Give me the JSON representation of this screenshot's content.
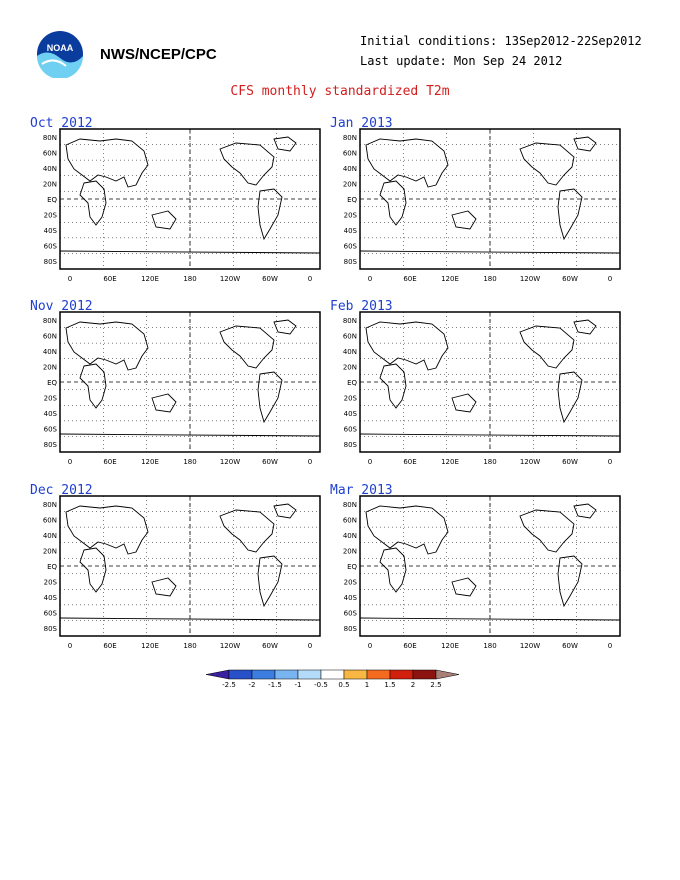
{
  "header": {
    "org": "NWS/NCEP/CPC",
    "initial": "Initial conditions: 13Sep2012-22Sep2012",
    "updated": "Last update: Mon Sep 24 2012",
    "title": "CFS monthly standardized T2m",
    "logo_text": "NOAA"
  },
  "panels": [
    {
      "title": "Oct 2012"
    },
    {
      "title": "Jan 2013"
    },
    {
      "title": "Nov 2012"
    },
    {
      "title": "Feb 2013"
    },
    {
      "title": "Dec 2012"
    },
    {
      "title": "Mar 2013"
    }
  ],
  "axes": {
    "lat_labels": [
      "80N",
      "60N",
      "40N",
      "20N",
      "EQ",
      "20S",
      "40S",
      "60S",
      "80S"
    ],
    "lon_labels": [
      "0",
      "60E",
      "120E",
      "180",
      "120W",
      "60W",
      "0"
    ]
  },
  "colorbar": {
    "labels": [
      "-2.5",
      "-2",
      "-1.5",
      "-1",
      "-0.5",
      "0.5",
      "1",
      "1.5",
      "2",
      "2.5"
    ],
    "colors": [
      "#3a1fa0",
      "#2850c8",
      "#3c7ee0",
      "#78b4f0",
      "#b4dcfa",
      "#ffffff",
      "#f7b742",
      "#f46a1e",
      "#d2200e",
      "#8c1410",
      "#a88078"
    ]
  }
}
